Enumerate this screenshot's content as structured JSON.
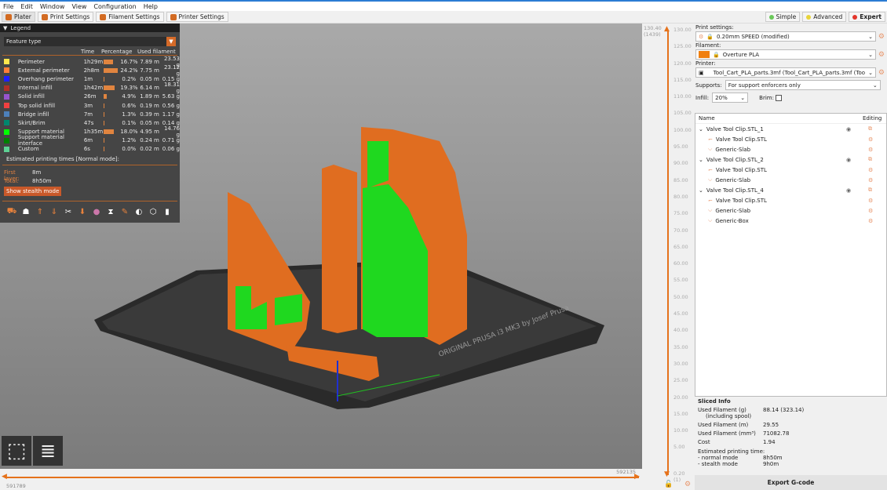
{
  "menu": [
    "File",
    "Edit",
    "Window",
    "View",
    "Configuration",
    "Help"
  ],
  "tabs": [
    {
      "label": "Plater"
    },
    {
      "label": "Print Settings"
    },
    {
      "label": "Filament Settings"
    },
    {
      "label": "Printer Settings"
    }
  ],
  "modes": [
    {
      "label": "Simple",
      "color": "#6ac85a"
    },
    {
      "label": "Advanced",
      "color": "#e8d43a"
    },
    {
      "label": "Expert",
      "color": "#e3352b"
    }
  ],
  "legend": {
    "title": "Legend",
    "view_type": "Feature type",
    "columns": [
      "Time",
      "Percentage",
      "Used filament"
    ],
    "items": [
      {
        "name": "Perimeter",
        "color": "#ffe64d",
        "time": "1h29m",
        "pct": "16.7%",
        "m": "7.89 m",
        "g": "23.53 g",
        "frac": 0.167
      },
      {
        "name": "External perimeter",
        "color": "#ff7d38",
        "time": "2h8m",
        "pct": "24.2%",
        "m": "7.75 m",
        "g": "23.12 g",
        "frac": 0.242
      },
      {
        "name": "Overhang perimeter",
        "color": "#1f1fff",
        "time": "1m",
        "pct": "0.2%",
        "m": "0.05 m",
        "g": "0.15 g",
        "frac": 0.002
      },
      {
        "name": "Internal infill",
        "color": "#b03029",
        "time": "1h42m",
        "pct": "19.3%",
        "m": "6.14 m",
        "g": "18.31 g",
        "frac": 0.193
      },
      {
        "name": "Solid infill",
        "color": "#9654cc",
        "time": "26m",
        "pct": "4.9%",
        "m": "1.89 m",
        "g": "5.63 g",
        "frac": 0.049
      },
      {
        "name": "Top solid infill",
        "color": "#f04040",
        "time": "3m",
        "pct": "0.6%",
        "m": "0.19 m",
        "g": "0.56 g",
        "frac": 0.006
      },
      {
        "name": "Bridge infill",
        "color": "#4d80ba",
        "time": "7m",
        "pct": "1.3%",
        "m": "0.39 m",
        "g": "1.17 g",
        "frac": 0.013
      },
      {
        "name": "Skirt/Brim",
        "color": "#00876e",
        "time": "47s",
        "pct": "0.1%",
        "m": "0.05 m",
        "g": "0.14 g",
        "frac": 0.001
      },
      {
        "name": "Support material",
        "color": "#00ff00",
        "time": "1h35m",
        "pct": "18.0%",
        "m": "4.95 m",
        "g": "14.76 g",
        "frac": 0.18
      },
      {
        "name": "Support material interface",
        "color": "#008000",
        "time": "6m",
        "pct": "1.2%",
        "m": "0.24 m",
        "g": "0.71 g",
        "frac": 0.012
      },
      {
        "name": "Custom",
        "color": "#5ed194",
        "time": "6s",
        "pct": "0.0%",
        "m": "0.02 m",
        "g": "0.06 g",
        "frac": 0.0
      }
    ],
    "estimated": "Estimated printing times [Normal mode]:",
    "first_layer_label": "First layer:",
    "first_layer": "8m",
    "total_label": "Total:",
    "total": "8h50m",
    "stealth_button": "Show stealth mode"
  },
  "vslider": {
    "top": "130.40",
    "top_layer": "(1439)",
    "bottom": "0.20",
    "bottom_layer": "(1)",
    "ticks": [
      "130.00",
      "125.00",
      "120.00",
      "115.00",
      "110.00",
      "105.00",
      "100.00",
      "95.00",
      "90.00",
      "85.00",
      "80.00",
      "75.00",
      "70.00",
      "65.00",
      "60.00",
      "55.00",
      "50.00",
      "45.00",
      "40.00",
      "35.00",
      "30.00",
      "25.00",
      "20.00",
      "15.00",
      "10.00",
      "5.00"
    ]
  },
  "hslider": {
    "left": "591789",
    "right": "592135"
  },
  "bed_label": "ORIGINAL PRUSA i3 MK3 by Josef Prusa",
  "sidebar": {
    "print_label": "Print settings:",
    "print_value": "0.20mm SPEED (modified)",
    "filament_label": "Filament:",
    "filament_value": "Overture PLA",
    "filament_color": "#f07f10",
    "printer_label": "Printer:",
    "printer_value": "Tool_Cart_PLA_parts.3mf (Tool_Cart_PLA_parts.3mf (Tool_Ca",
    "supports_label": "Supports:",
    "supports_value": "For support enforcers only",
    "infill_label": "Infill:",
    "infill_value": "20%",
    "brim_label": "Brim:",
    "tree_cols": {
      "name": "Name",
      "editing": "Editing"
    },
    "objects": [
      {
        "name": "Valve Tool Clip.STL_1",
        "children": [
          "Valve Tool Clip.STL",
          "Generic-Slab"
        ]
      },
      {
        "name": "Valve Tool Clip.STL_2",
        "children": [
          "Valve Tool Clip.STL",
          "Generic-Slab"
        ]
      },
      {
        "name": "Valve Tool Clip.STL_4",
        "children": [
          "Valve Tool Clip.STL",
          "Generic-Slab",
          "Generic-Box"
        ]
      }
    ],
    "sliced": {
      "title": "Sliced Info",
      "rows": [
        {
          "k": "Used Filament (g)",
          "k2": "(including spool)",
          "v": "88.14 (323.14)"
        },
        {
          "k": "Used Filament (m)",
          "v": "29.55"
        },
        {
          "k": "Used Filament (mm³)",
          "v": "71082.78"
        },
        {
          "k": "Cost",
          "v": "1.94"
        }
      ],
      "time_label": "Estimated printing time:",
      "normal_label": "- normal mode",
      "normal": "8h50m",
      "stealth_label": "- stealth mode",
      "stealth": "9h0m"
    },
    "export": "Export G-code"
  }
}
